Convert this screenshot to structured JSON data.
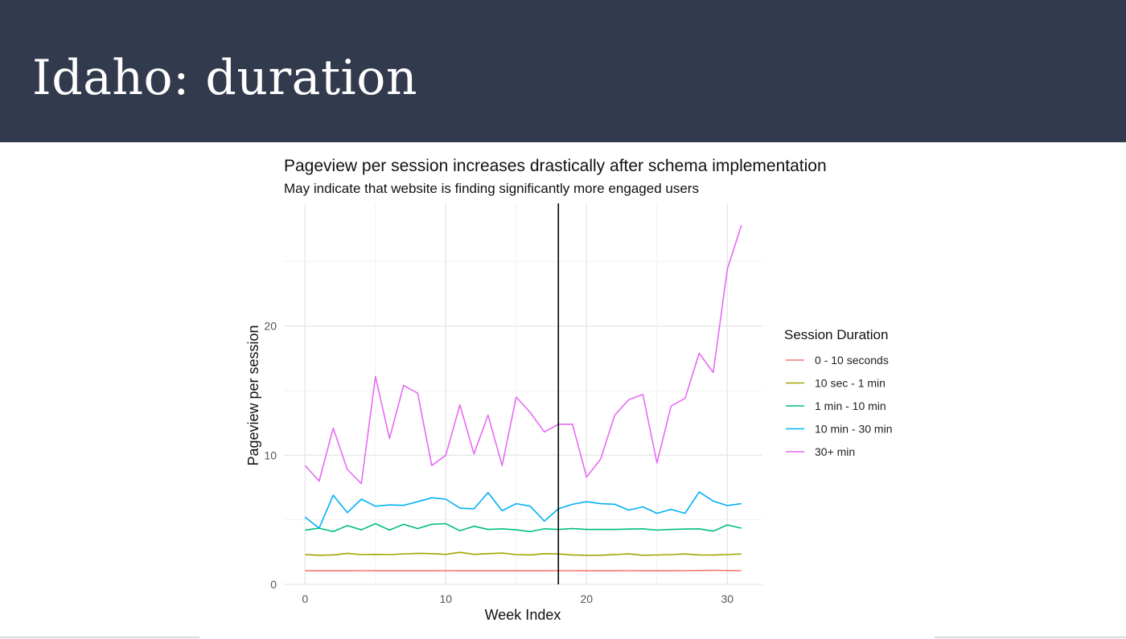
{
  "slide": {
    "title": "Idaho: duration"
  },
  "chart_data": {
    "type": "line",
    "title": "Pageview per session increases drastically after schema implementation",
    "subtitle": "May indicate that website is finding significantly more engaged users",
    "xlabel": "Week Index",
    "ylabel": "Pageview per session",
    "xlim": [
      -1.5,
      32.5
    ],
    "ylim": [
      0,
      29.5
    ],
    "xticks": [
      0,
      10,
      20,
      30
    ],
    "yticks": [
      0,
      10,
      20
    ],
    "grid": true,
    "vline_x": 18,
    "legend_title": "Session Duration",
    "legend_position": "right",
    "x": [
      0,
      1,
      2,
      3,
      4,
      5,
      6,
      7,
      8,
      9,
      10,
      11,
      12,
      13,
      14,
      15,
      16,
      17,
      18,
      19,
      20,
      21,
      22,
      23,
      24,
      25,
      26,
      27,
      28,
      29,
      30,
      31
    ],
    "series": [
      {
        "name": "0 - 10 seconds",
        "color": "#f8766d",
        "values": [
          1.05,
          1.05,
          1.05,
          1.05,
          1.06,
          1.05,
          1.05,
          1.05,
          1.05,
          1.05,
          1.06,
          1.05,
          1.05,
          1.05,
          1.05,
          1.05,
          1.05,
          1.05,
          1.06,
          1.06,
          1.05,
          1.05,
          1.05,
          1.06,
          1.05,
          1.05,
          1.05,
          1.06,
          1.07,
          1.08,
          1.07,
          1.06
        ]
      },
      {
        "name": "10 sec - 1 min",
        "color": "#a3a500",
        "values": [
          2.3,
          2.25,
          2.28,
          2.4,
          2.3,
          2.32,
          2.3,
          2.35,
          2.4,
          2.38,
          2.32,
          2.48,
          2.32,
          2.38,
          2.42,
          2.3,
          2.28,
          2.38,
          2.35,
          2.28,
          2.25,
          2.25,
          2.3,
          2.36,
          2.25,
          2.27,
          2.3,
          2.35,
          2.28,
          2.27,
          2.3,
          2.35
        ]
      },
      {
        "name": "1 min - 10 min",
        "color": "#00bf7d",
        "values": [
          4.2,
          4.35,
          4.08,
          4.55,
          4.22,
          4.7,
          4.2,
          4.65,
          4.32,
          4.65,
          4.7,
          4.15,
          4.5,
          4.25,
          4.3,
          4.22,
          4.08,
          4.3,
          4.25,
          4.32,
          4.25,
          4.25,
          4.25,
          4.28,
          4.3,
          4.2,
          4.25,
          4.28,
          4.3,
          4.12,
          4.6,
          4.35
        ]
      },
      {
        "name": "10 min - 30 min",
        "color": "#00b0f6",
        "values": [
          5.2,
          4.35,
          6.9,
          5.55,
          6.6,
          6.05,
          6.15,
          6.12,
          6.4,
          6.7,
          6.6,
          5.9,
          5.85,
          7.1,
          5.7,
          6.25,
          6.05,
          4.9,
          5.85,
          6.2,
          6.4,
          6.25,
          6.2,
          5.75,
          6.0,
          5.5,
          5.8,
          5.5,
          7.15,
          6.45,
          6.1,
          6.25
        ]
      },
      {
        "name": "30+ min",
        "color": "#e76bf3",
        "values": [
          9.2,
          8.0,
          12.1,
          8.9,
          7.8,
          16.1,
          11.3,
          15.4,
          14.8,
          9.2,
          10.0,
          13.9,
          10.1,
          13.1,
          9.2,
          14.5,
          13.3,
          11.8,
          12.4,
          12.4,
          8.3,
          9.7,
          13.1,
          14.3,
          14.7,
          9.4,
          13.8,
          14.4,
          17.9,
          16.4,
          24.4,
          27.8
        ]
      }
    ]
  }
}
